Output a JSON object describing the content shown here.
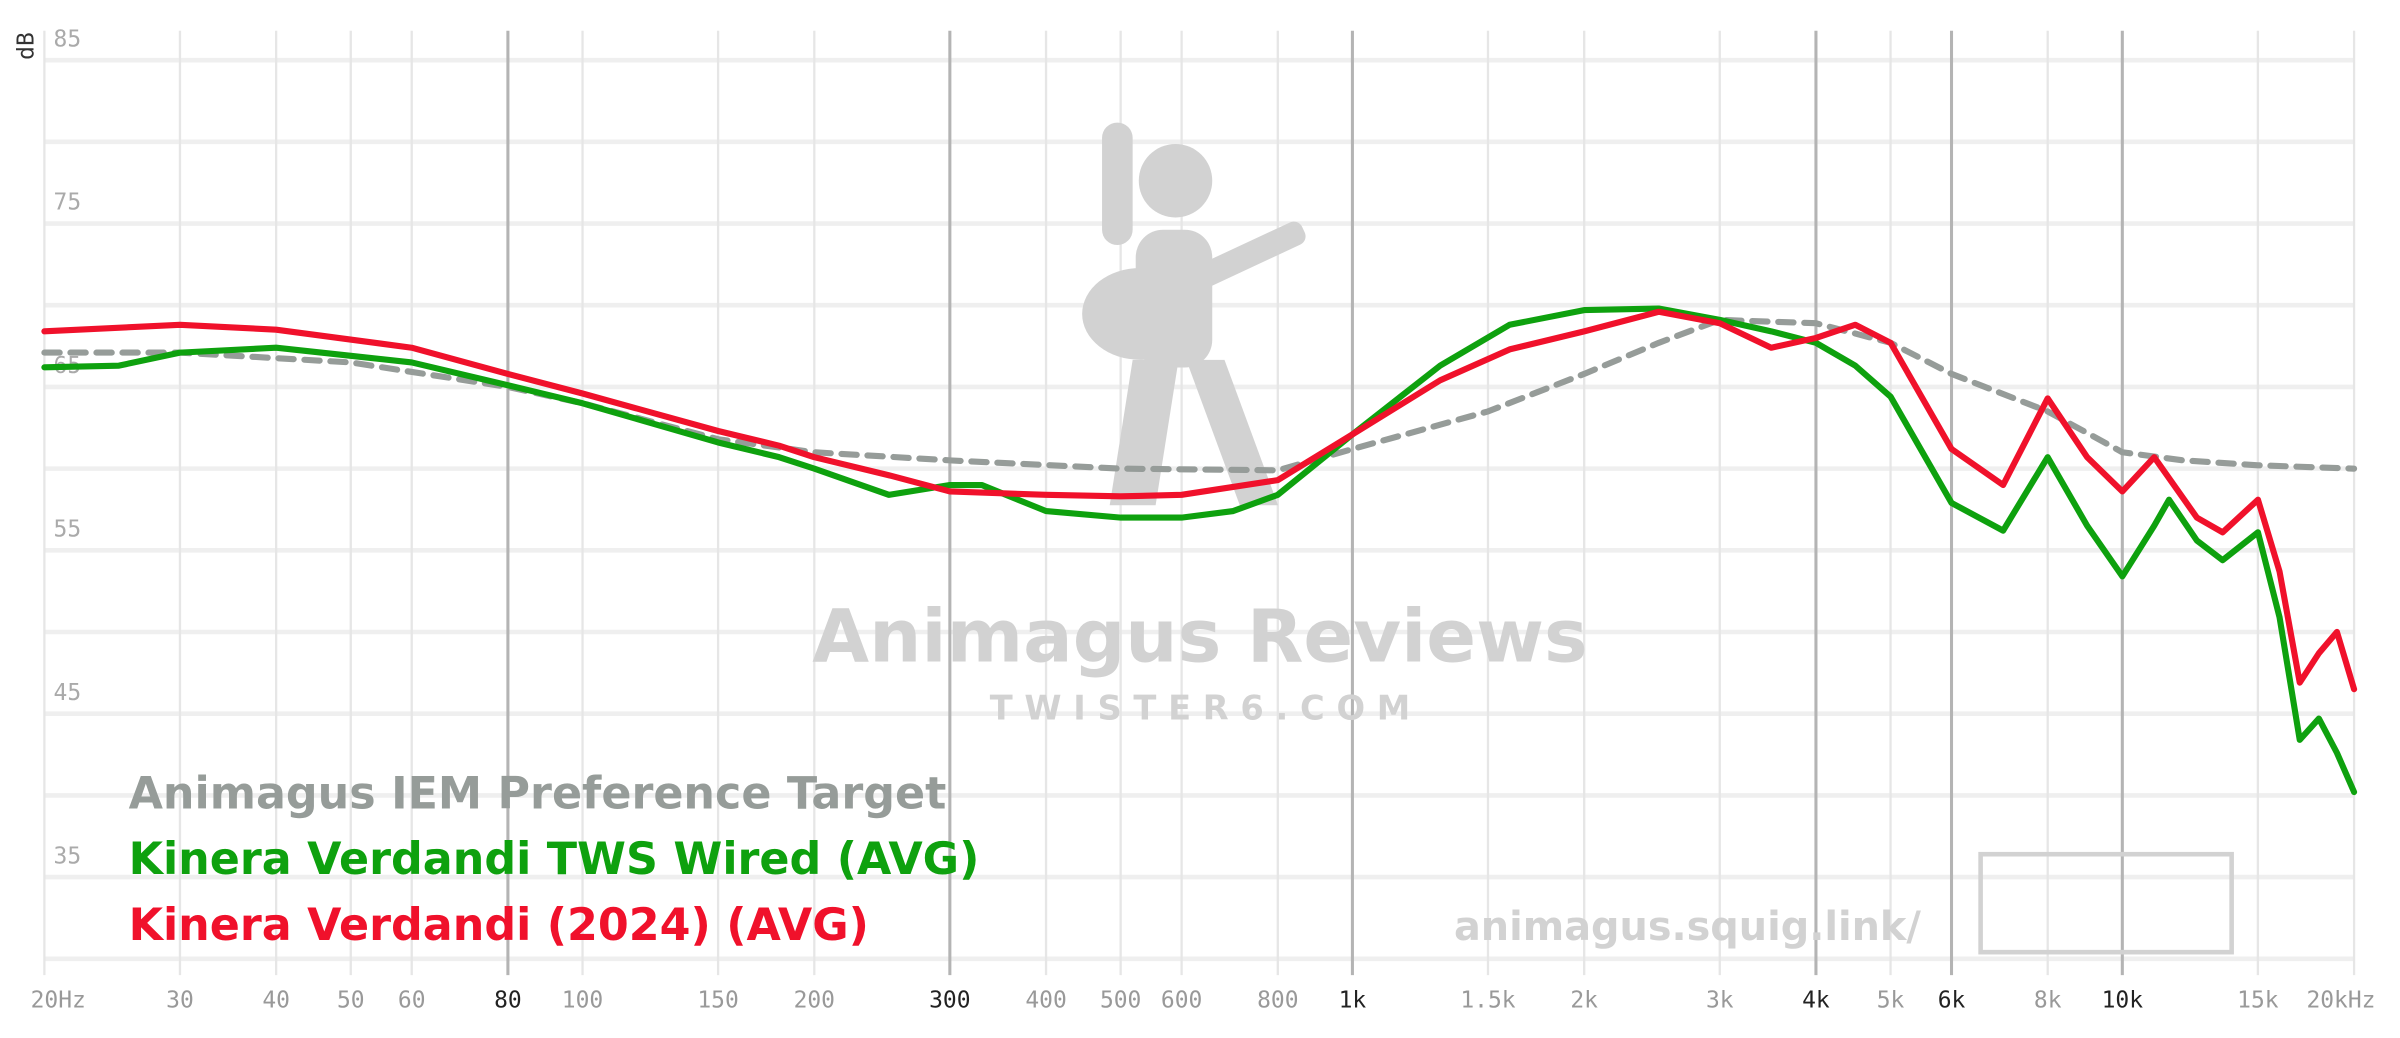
{
  "chart_data": {
    "type": "line",
    "y_label": "dB",
    "log_x": true,
    "xlim": [
      20,
      20000
    ],
    "ylim": [
      29,
      86.8
    ],
    "xticks": [
      {
        "value": 20,
        "label": "20Hz"
      },
      30,
      40,
      50,
      60,
      80,
      100,
      150,
      200,
      300,
      400,
      500,
      600,
      800,
      {
        "value": 1000,
        "label": "1k"
      },
      {
        "value": 1500,
        "label": "1.5k"
      },
      {
        "value": 2000,
        "label": "2k"
      },
      {
        "value": 3000,
        "label": "3k"
      },
      {
        "value": 4000,
        "label": "4k"
      },
      {
        "value": 5000,
        "label": "5k"
      },
      {
        "value": 6000,
        "label": "6k"
      },
      {
        "value": 8000,
        "label": "8k"
      },
      {
        "value": 10000,
        "label": "10k"
      },
      {
        "value": 15000,
        "label": "15k"
      },
      {
        "value": 20000,
        "label": "20kHz"
      }
    ],
    "emphasized_xticks": [
      80,
      300,
      1000,
      4000,
      6000,
      10000
    ],
    "yticks": [
      85,
      75,
      65,
      55,
      45,
      35
    ],
    "minor_yticks": [
      80,
      70,
      60,
      50,
      40,
      30
    ],
    "grid": true,
    "watermark": {
      "title": "Animagus Reviews",
      "subtitle": "T W I S T E R 6 . C O M",
      "url": "animagus.squig.link/"
    },
    "series": [
      {
        "name": "Animagus IEM Preference Target",
        "color": "#969c99",
        "dashed": true,
        "x": [
          20,
          30,
          50,
          80,
          100,
          150,
          200,
          300,
          500,
          800,
          1000,
          1500,
          2000,
          2500,
          3000,
          4000,
          5000,
          6000,
          8000,
          10000,
          12000,
          15000,
          20000
        ],
        "values": [
          67.1,
          67.1,
          66.5,
          65.0,
          64.0,
          61.8,
          61.0,
          60.5,
          60.0,
          59.9,
          61.2,
          63.5,
          65.8,
          67.7,
          69.1,
          68.9,
          67.7,
          65.8,
          63.5,
          61.0,
          60.5,
          60.2,
          60.0
        ]
      },
      {
        "name": "Kinera Verdandi TWS Wired (AVG)",
        "color": "#0ea10e",
        "dashed": false,
        "x": [
          20,
          25,
          30,
          40,
          50,
          60,
          80,
          100,
          150,
          180,
          200,
          250,
          300,
          330,
          400,
          500,
          600,
          700,
          800,
          1000,
          1300,
          1600,
          2000,
          2500,
          3000,
          3500,
          4000,
          4500,
          5000,
          6000,
          7000,
          8000,
          9000,
          10000,
          11000,
          11500,
          12500,
          13500,
          15000,
          16000,
          17000,
          18000,
          19000,
          20000
        ],
        "values": [
          66.2,
          66.3,
          67.1,
          67.4,
          66.9,
          66.5,
          65.1,
          64.0,
          61.6,
          60.7,
          60.0,
          58.4,
          59.0,
          59.0,
          57.4,
          57.0,
          57.0,
          57.4,
          58.4,
          62.1,
          66.3,
          68.8,
          69.7,
          69.8,
          69.1,
          68.4,
          67.7,
          66.3,
          64.4,
          57.9,
          56.2,
          60.7,
          56.5,
          53.4,
          56.5,
          58.1,
          55.6,
          54.4,
          56.1,
          50.9,
          43.4,
          44.7,
          42.6,
          40.2
        ]
      },
      {
        "name": "Kinera Verdandi (2024) (AVG)",
        "color": "#f0112b",
        "dashed": false,
        "x": [
          20,
          30,
          40,
          60,
          80,
          100,
          150,
          180,
          200,
          250,
          300,
          400,
          500,
          600,
          800,
          1000,
          1300,
          1600,
          2000,
          2500,
          3000,
          3500,
          4000,
          4500,
          5000,
          6000,
          7000,
          8000,
          9000,
          10000,
          11000,
          12500,
          13500,
          15000,
          16000,
          17000,
          18000,
          19000,
          20000
        ],
        "values": [
          68.4,
          68.8,
          68.5,
          67.4,
          65.8,
          64.6,
          62.3,
          61.4,
          60.7,
          59.6,
          58.6,
          58.4,
          58.3,
          58.4,
          59.3,
          62.1,
          65.4,
          67.3,
          68.4,
          69.6,
          68.9,
          67.4,
          68.0,
          68.8,
          67.7,
          61.2,
          59.0,
          64.3,
          60.7,
          58.6,
          60.7,
          57.0,
          56.1,
          58.1,
          53.7,
          46.9,
          48.7,
          50.0,
          46.5
        ]
      }
    ]
  }
}
